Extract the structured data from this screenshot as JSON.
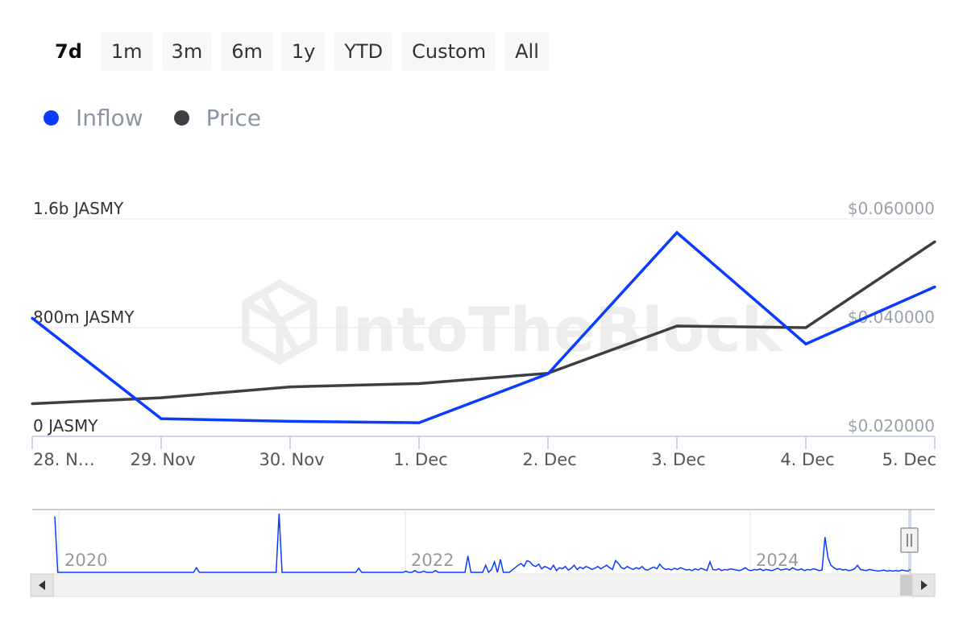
{
  "range_selector": {
    "buttons": [
      "7d",
      "1m",
      "3m",
      "6m",
      "1y",
      "YTD",
      "Custom",
      "All"
    ],
    "selected": "7d"
  },
  "legend": {
    "items": [
      {
        "label": "Inflow",
        "color": "#0a3cff"
      },
      {
        "label": "Price",
        "color": "#3c3f43"
      }
    ]
  },
  "watermark": "IntoTheBlock",
  "chart_data": {
    "type": "line",
    "x": [
      "28. Nov",
      "29. Nov",
      "30. Nov",
      "1. Dec",
      "2. Dec",
      "3. Dec",
      "4. Dec",
      "5. Dec"
    ],
    "x_tick_labels": [
      "28. N…",
      "29. Nov",
      "30. Nov",
      "1. Dec",
      "2. Dec",
      "3. Dec",
      "4. Dec",
      "5. Dec"
    ],
    "y_left": {
      "ticks": [
        "0 JASMY",
        "800m JASMY",
        "1.6b JASMY"
      ],
      "range": [
        0,
        1600000000
      ]
    },
    "y_right": {
      "ticks": [
        "$0.020000",
        "$0.040000",
        "$0.060000"
      ],
      "range": [
        0.02,
        0.06
      ]
    },
    "series": [
      {
        "name": "Inflow",
        "axis": "left",
        "color": "#0a3cff",
        "values": [
          870000000,
          130000000,
          110000000,
          100000000,
          460000000,
          1500000000,
          680000000,
          1100000000
        ]
      },
      {
        "name": "Price",
        "axis": "right",
        "color": "#3c3f43",
        "values": [
          0.026,
          0.0271,
          0.0291,
          0.0297,
          0.0316,
          0.0403,
          0.04,
          0.0558
        ]
      }
    ],
    "grid": true
  },
  "navigator": {
    "year_labels": [
      "2020",
      "2022",
      "2024"
    ],
    "scroll_left_icon": "arrow-left-icon",
    "scroll_right_icon": "arrow-right-icon",
    "handle_icon": "drag-handle-icon",
    "sparkline": [
      0.95,
      0,
      0,
      0,
      0,
      0,
      0,
      0,
      0,
      0,
      0,
      0,
      0,
      0,
      0,
      0,
      0,
      0,
      0,
      0,
      0,
      0,
      0,
      0,
      0,
      0,
      0,
      0,
      0,
      0,
      0,
      0,
      0,
      0,
      0,
      0,
      0,
      0,
      0,
      0,
      0,
      0,
      0,
      0,
      0,
      0,
      0,
      0,
      0.08,
      0,
      0,
      0,
      0,
      0,
      0,
      0,
      0,
      0,
      0,
      0,
      0,
      0,
      0,
      0,
      0,
      0,
      0,
      0,
      0,
      0,
      0,
      0,
      0,
      0,
      0,
      0,
      1.0,
      0,
      0,
      0,
      0,
      0,
      0,
      0,
      0,
      0,
      0,
      0,
      0,
      0,
      0,
      0,
      0,
      0,
      0,
      0,
      0,
      0,
      0,
      0,
      0,
      0,
      0,
      0.07,
      0,
      0,
      0,
      0,
      0,
      0,
      0,
      0,
      0,
      0,
      0,
      0,
      0,
      0,
      0,
      0.02,
      0,
      0,
      0.03,
      0,
      0,
      0.02,
      0,
      0,
      0,
      0.03,
      0,
      0,
      0,
      0,
      0,
      0,
      0,
      0,
      0,
      0,
      0.28,
      0,
      0,
      0,
      0,
      0,
      0.12,
      0,
      0.05,
      0.18,
      0,
      0.22,
      0,
      0,
      0,
      0.04,
      0.08,
      0.12,
      0.15,
      0.1,
      0.2,
      0.18,
      0.12,
      0.1,
      0.14,
      0.06,
      0.1,
      0.08,
      0.05,
      0.12,
      0.03,
      0.08,
      0.06,
      0.1,
      0.04,
      0.07,
      0.12,
      0.05,
      0.09,
      0.06,
      0.1,
      0.08,
      0.05,
      0.07,
      0.1,
      0.06,
      0.09,
      0.12,
      0.08,
      0.05,
      0.2,
      0.15,
      0.08,
      0.06,
      0.1,
      0.07,
      0.05,
      0.08,
      0.06,
      0.1,
      0.05,
      0.04,
      0.07,
      0.09,
      0.06,
      0.14,
      0.08,
      0.05,
      0.06,
      0.04,
      0.07,
      0.05,
      0.08,
      0.06,
      0.04,
      0.05,
      0.03,
      0.06,
      0.04,
      0.07,
      0.05,
      0.03,
      0.18,
      0.05,
      0.04,
      0.06,
      0.03,
      0.05,
      0.04,
      0.06,
      0.05,
      0.04,
      0.03,
      0.05,
      0.08,
      0.04,
      0.03,
      0.05,
      0.04,
      0.06,
      0.03,
      0.05,
      0.04,
      0.03,
      0.05,
      0.07,
      0.04,
      0.05,
      0.06,
      0.04,
      0.08,
      0.05,
      0.04,
      0.06,
      0.03,
      0.05,
      0.04,
      0.06,
      0.05,
      0.03,
      0.04,
      0.6,
      0.25,
      0.12,
      0.08,
      0.05,
      0.06,
      0.04,
      0.05,
      0.03,
      0.04,
      0.06,
      0.12,
      0.05,
      0.04,
      0.03,
      0.05,
      0.04,
      0.03,
      0.02,
      0.03,
      0.04,
      0.02,
      0.03,
      0.02,
      0.03,
      0.02,
      0.04,
      0.03,
      0.02,
      0.05
    ]
  }
}
